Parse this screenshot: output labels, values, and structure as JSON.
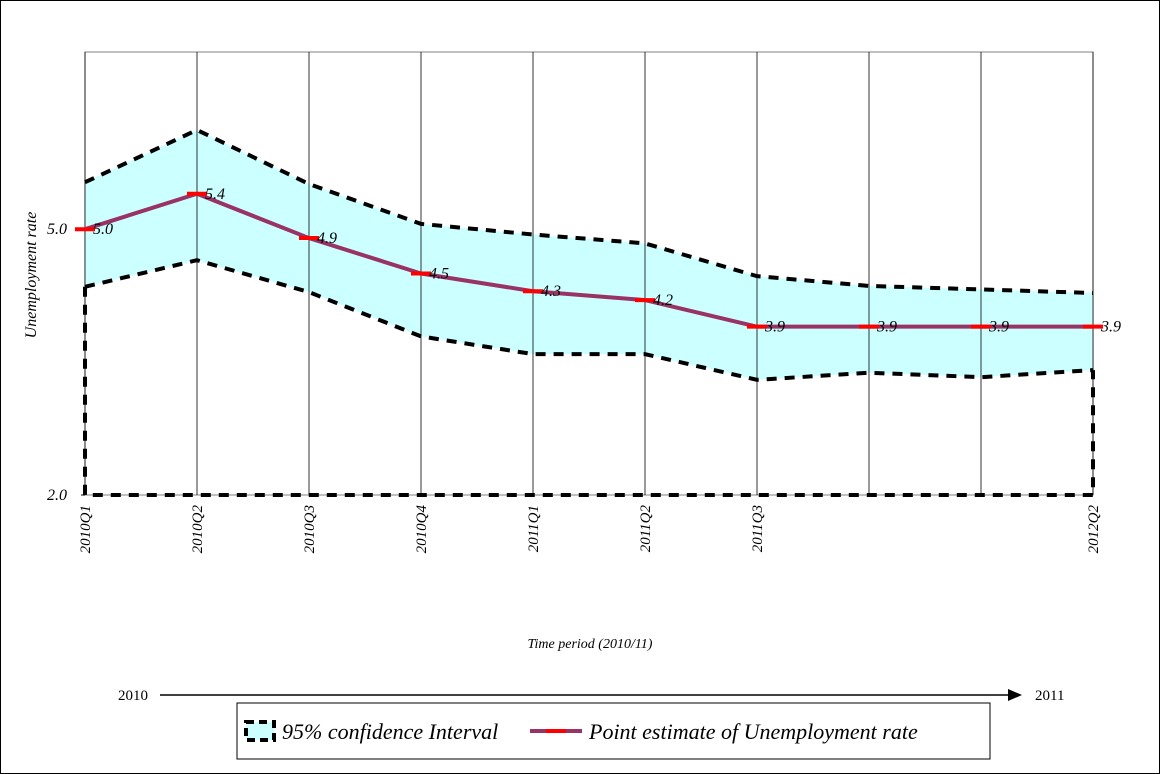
{
  "chart_data": {
    "type": "line",
    "y_label": "Unemployment rate",
    "x_label": "Time period (2010/11)",
    "categories": [
      "2010Q1",
      "2010Q2",
      "2010Q3",
      "2010Q4",
      "2011Q1",
      "2011Q2",
      "2011Q3",
      null,
      null,
      "2012Q2"
    ],
    "band": {
      "name": "95% confidence Interval",
      "color": "#ccffff",
      "upper": [
        5.53,
        6.12,
        5.51,
        5.06,
        4.94,
        4.84,
        4.47,
        4.36,
        4.32,
        4.28
      ],
      "lower": [
        4.35,
        4.65,
        4.29,
        3.79,
        3.59,
        3.59,
        3.3,
        3.38,
        3.33,
        3.41
      ]
    },
    "series": [
      {
        "name": "Point estimate of Unemployment rate",
        "color": "#993366",
        "marker_color": "#ff0000",
        "values": [
          5.0,
          5.4,
          4.9,
          4.5,
          4.3,
          4.2,
          3.9,
          3.9,
          3.9,
          3.9
        ],
        "value_labels": [
          "5.0",
          "5.4",
          "4.9",
          "4.5",
          "4.3",
          "4.2",
          "3.9",
          "3.9",
          "3.9",
          "3.9"
        ]
      }
    ],
    "ylim": [
      2,
      7
    ],
    "yticks": [
      {
        "value": 2,
        "label": "2.0"
      },
      {
        "value": 5,
        "label": "5.0"
      }
    ],
    "grid": true,
    "annotations": {
      "start": "2010",
      "end": "2011"
    }
  }
}
